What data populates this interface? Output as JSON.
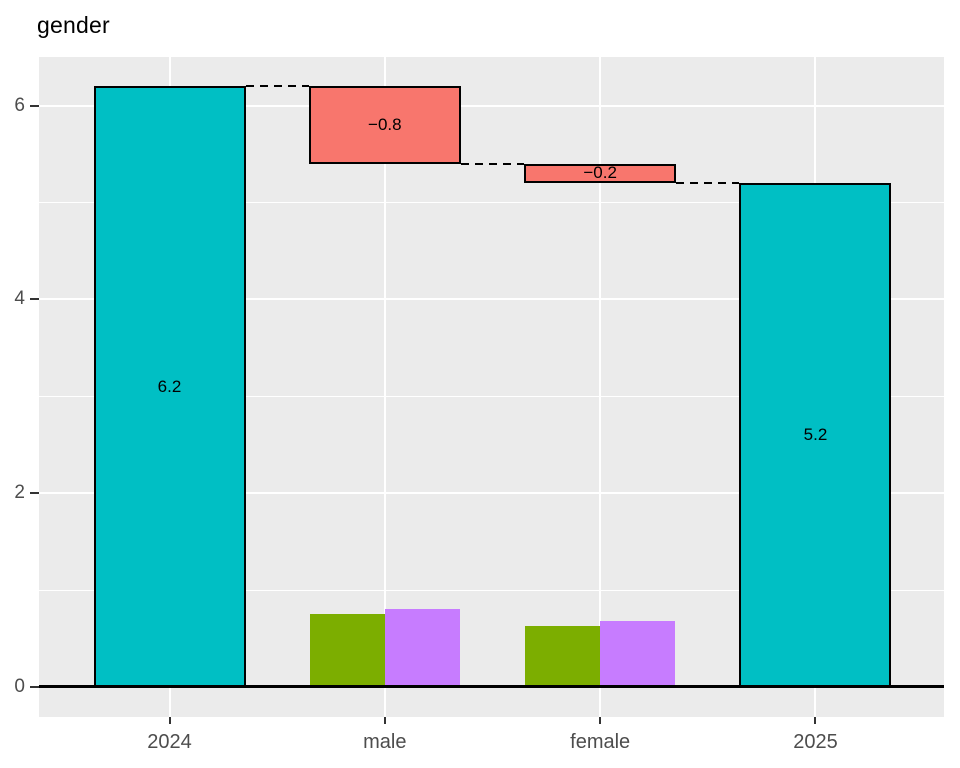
{
  "title": "gender",
  "chart_data": {
    "type": "bar",
    "subtype": "waterfall-with-dodged-bars",
    "title": "gender",
    "categories": [
      "2024",
      "male",
      "female",
      "2025"
    ],
    "x_tick_labels": [
      "2024",
      "male",
      "female",
      "2025"
    ],
    "y_tick_labels": [
      "0",
      "2",
      "4",
      "6"
    ],
    "y_tick_values": [
      0,
      2,
      4,
      6
    ],
    "y_minor_values": [
      1,
      3,
      5
    ],
    "ylim": [
      -0.31,
      6.49
    ],
    "grid": "white-on-gray",
    "legend": "none",
    "waterfall_segments": [
      {
        "category": "2024",
        "from": 0,
        "to": 6.2,
        "value": 6.2,
        "label": "6.2",
        "fill": "#00BFC4"
      },
      {
        "category": "male",
        "from": 6.2,
        "to": 5.4,
        "value": -0.8,
        "label": "−0.8",
        "fill": "#F8766D"
      },
      {
        "category": "female",
        "from": 5.4,
        "to": 5.2,
        "value": -0.2,
        "label": "−0.2",
        "fill": "#F8766D"
      },
      {
        "category": "2025",
        "from": 0,
        "to": 5.2,
        "value": 5.2,
        "label": "5.2",
        "fill": "#00BFC4"
      }
    ],
    "connectors": [
      {
        "from_category": "2024",
        "to_category": "male",
        "y": 6.2
      },
      {
        "from_category": "male",
        "to_category": "female",
        "y": 5.4
      },
      {
        "from_category": "female",
        "to_category": "2025",
        "y": 5.2
      }
    ],
    "dodged_bars": [
      {
        "category": "male",
        "position": "left",
        "value": 0.75,
        "fill": "#7CAE00"
      },
      {
        "category": "male",
        "position": "right",
        "value": 0.8,
        "fill": "#C77CFF"
      },
      {
        "category": "female",
        "position": "left",
        "value": 0.63,
        "fill": "#7CAE00"
      },
      {
        "category": "female",
        "position": "right",
        "value": 0.68,
        "fill": "#C77CFF"
      }
    ],
    "colors": {
      "total_bar": "#00BFC4",
      "decrease_bar": "#F8766D",
      "dodge_left_bar": "#7CAE00",
      "dodge_right_bar": "#C77CFF",
      "panel_background": "#EBEBEB",
      "gridline": "#FFFFFF",
      "axis_text": "#4D4D4D",
      "bar_stroke": "#000000",
      "axis_line": "#000000"
    }
  }
}
